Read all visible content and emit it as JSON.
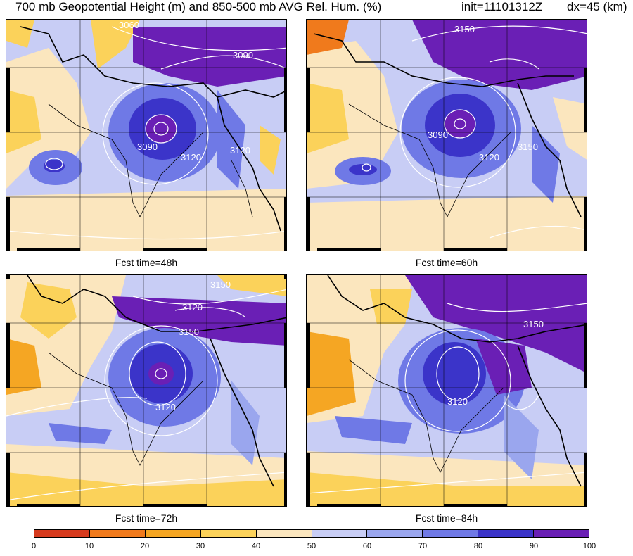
{
  "title": {
    "main": "700 mb Geopotential Height (m) and 850-500 mb AVG Rel. Hum. (%)",
    "init": "init=11101312Z",
    "dx": "dx=45 (km)"
  },
  "panels": [
    {
      "caption": "Fcst time=48h",
      "contour_labels": [
        "3090",
        "3090",
        "3120",
        "3120",
        "3060"
      ]
    },
    {
      "caption": "Fcst time=60h",
      "contour_labels": [
        "3150",
        "3090",
        "3120",
        "3150"
      ]
    },
    {
      "caption": "Fcst time=72h",
      "contour_labels": [
        "3150",
        "3120",
        "3150",
        "3120"
      ]
    },
    {
      "caption": "Fcst time=84h",
      "contour_labels": [
        "3150",
        "3120"
      ]
    }
  ],
  "colorbar": {
    "labels": [
      "0",
      "10",
      "20",
      "30",
      "40",
      "50",
      "60",
      "70",
      "80",
      "90",
      "100"
    ],
    "colors": [
      "#d63a1e",
      "#f07a1c",
      "#f5a623",
      "#fbd25a",
      "#fbe6be",
      "#c8cdf5",
      "#9aa6ee",
      "#6f79e6",
      "#3b34c9",
      "#6a1fb5"
    ]
  },
  "colors": {
    "dry": "#fbd25a",
    "neutral": "#fbe6be",
    "moist": "#9aa6ee",
    "wet": "#3b34c9",
    "saturated": "#6a1fb5"
  }
}
